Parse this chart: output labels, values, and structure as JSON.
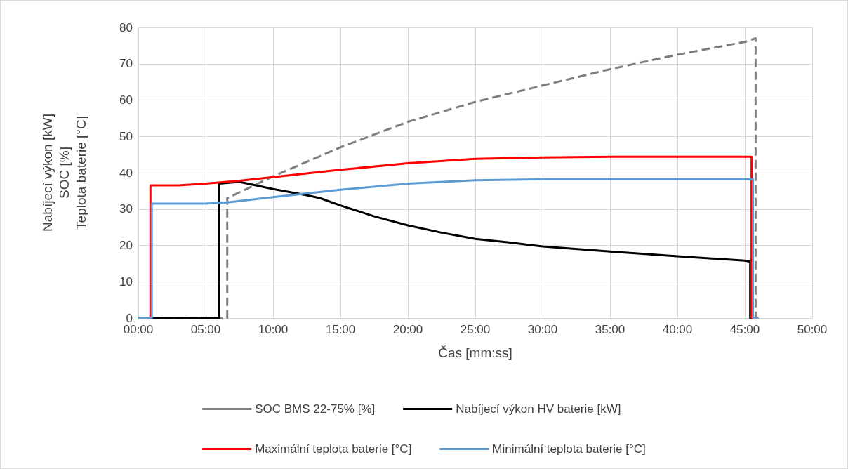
{
  "chart_data": {
    "type": "line",
    "xlabel": "Čas [mm:ss]",
    "ylabel": "Nabíjecí výkon [kW]\nSOC [%]\nTeplota baterie [°C]",
    "xlim": [
      0,
      50
    ],
    "xticks": [
      {
        "value": 0,
        "label": "00:00"
      },
      {
        "value": 5,
        "label": "05:00"
      },
      {
        "value": 10,
        "label": "10:00"
      },
      {
        "value": 15,
        "label": "15:00"
      },
      {
        "value": 20,
        "label": "20:00"
      },
      {
        "value": 25,
        "label": "25:00"
      },
      {
        "value": 30,
        "label": "30:00"
      },
      {
        "value": 35,
        "label": "35:00"
      },
      {
        "value": 40,
        "label": "40:00"
      },
      {
        "value": 45,
        "label": "45:00"
      },
      {
        "value": 50,
        "label": "50:00"
      }
    ],
    "ylim": [
      0,
      80
    ],
    "yticks": [
      0,
      10,
      20,
      30,
      40,
      50,
      60,
      70,
      80
    ],
    "grid": true,
    "legend": "bottom",
    "marker": "none",
    "series": [
      {
        "name": "SOC BMS 22-75% [%]",
        "color": "#7f7f7f",
        "line_style": "dashed",
        "x": [
          0,
          6.6,
          6.6,
          10,
          15,
          20,
          25,
          30,
          35,
          40,
          45,
          45.8,
          45.8,
          46
        ],
        "values": [
          0,
          0,
          33,
          39,
          47,
          54,
          59.5,
          64,
          68.5,
          72.5,
          76,
          77,
          0,
          0
        ]
      },
      {
        "name": "Nabíjecí výkon HV baterie [kW]",
        "color": "#000000",
        "line_style": "solid",
        "x": [
          0,
          6,
          6,
          7.5,
          10,
          12.5,
          13.5,
          15,
          17.5,
          20,
          22.5,
          25,
          27.5,
          30,
          35,
          40,
          45,
          45.4,
          45.4,
          46
        ],
        "values": [
          0,
          0,
          37,
          37.5,
          35.5,
          33.8,
          33,
          31,
          28,
          25.5,
          23.5,
          21.8,
          20.8,
          19.7,
          18.3,
          17,
          15.8,
          15.5,
          0,
          0
        ]
      },
      {
        "name": "Maximální teplota baterie [°C]",
        "color": "#ff0000",
        "line_style": "solid",
        "x": [
          0,
          0.9,
          0.9,
          3,
          5,
          7.5,
          10,
          12.5,
          15,
          20,
          25,
          30,
          35,
          45.5,
          45.5,
          46
        ],
        "values": [
          0,
          0,
          36.5,
          36.5,
          37,
          37.8,
          38.8,
          39.8,
          40.8,
          42.6,
          43.8,
          44.2,
          44.4,
          44.4,
          0,
          0
        ]
      },
      {
        "name": "Minimální teplota baterie [°C]",
        "color": "#5b9bd5",
        "line_style": "solid",
        "x": [
          0,
          1,
          1,
          5,
          6.5,
          10,
          12.5,
          15,
          20,
          25,
          30,
          45.6,
          45.6,
          46
        ],
        "values": [
          0,
          0,
          31.5,
          31.5,
          31.8,
          33.3,
          34.3,
          35.3,
          37,
          37.9,
          38.2,
          38.2,
          0,
          0
        ]
      }
    ]
  }
}
